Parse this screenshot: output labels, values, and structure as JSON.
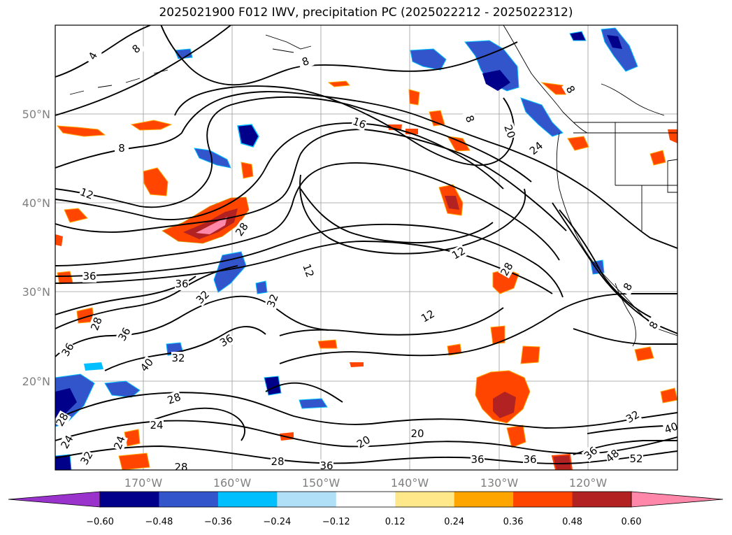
{
  "title": "2025021900 F012 IWV, precipitation PC (2025022212 - 2025022312)",
  "lat_labels": [
    "50°N",
    "40°N",
    "30°N",
    "20°N"
  ],
  "lon_labels": [
    "170°W",
    "160°W",
    "150°W",
    "140°W",
    "130°W",
    "120°W"
  ],
  "colorbar": {
    "ticks": [
      "−0.60",
      "−0.48",
      "−0.36",
      "−0.24",
      "−0.12",
      "0.12",
      "0.24",
      "0.36",
      "0.48",
      "0.60"
    ],
    "colors": [
      "#9933cc",
      "#00008b",
      "#3355cc",
      "#00bfff",
      "#b0e0f8",
      "#ffffff",
      "#ffe88a",
      "#ffa500",
      "#ff4500",
      "#b22222",
      "#ff88aa"
    ]
  },
  "contour_labels": [
    "4",
    "8",
    "8",
    "8",
    "8",
    "16",
    "20",
    "24",
    "8",
    "12",
    "28",
    "12",
    "12",
    "36",
    "36",
    "32",
    "32",
    "36",
    "28",
    "12",
    "28",
    "24",
    "36",
    "36",
    "40",
    "28",
    "32",
    "24",
    "28",
    "28",
    "32",
    "24",
    "20",
    "20",
    "28",
    "36",
    "36",
    "36",
    "36",
    "32",
    "40",
    "48",
    "52",
    "8",
    "8"
  ],
  "precip_legend_units": ""
}
